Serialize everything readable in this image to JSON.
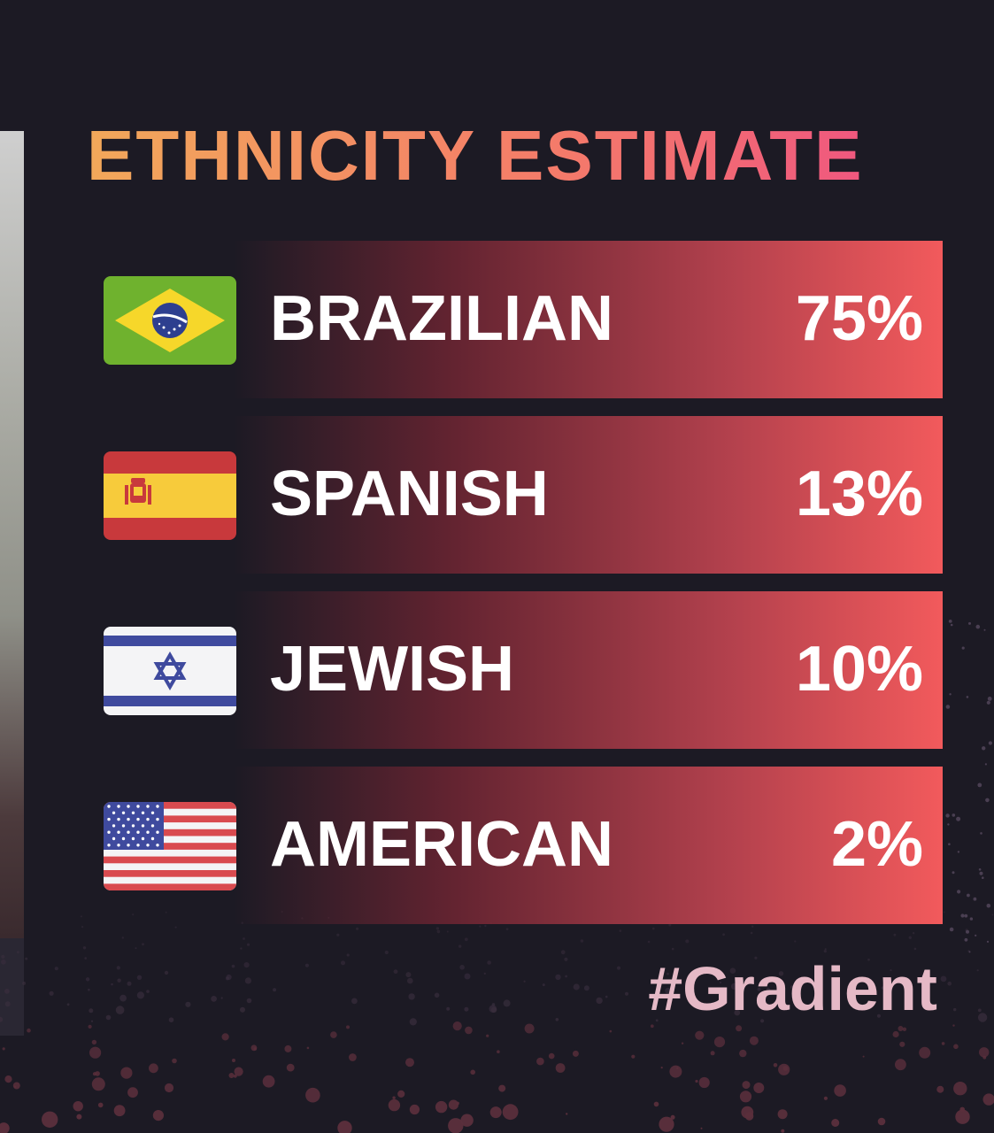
{
  "header": {
    "title": "ETHNICITY ESTIMATE"
  },
  "rows": [
    {
      "label": "BRAZILIAN",
      "percent": "75%",
      "flag_icon": "brazil-flag-icon"
    },
    {
      "label": "SPANISH",
      "percent": "13%",
      "flag_icon": "spain-flag-icon"
    },
    {
      "label": "JEWISH",
      "percent": "10%",
      "flag_icon": "israel-flag-icon"
    },
    {
      "label": "AMERICAN",
      "percent": "2%",
      "flag_icon": "usa-flag-icon"
    }
  ],
  "footer": {
    "hashtag": "#Gradient"
  },
  "colors": {
    "background": "#1c1a24",
    "title_gradient_start": "#f2a85a",
    "title_gradient_end": "#ee4d85",
    "bar_end": "#f25a5c",
    "hashtag": "#e5b9c6"
  }
}
